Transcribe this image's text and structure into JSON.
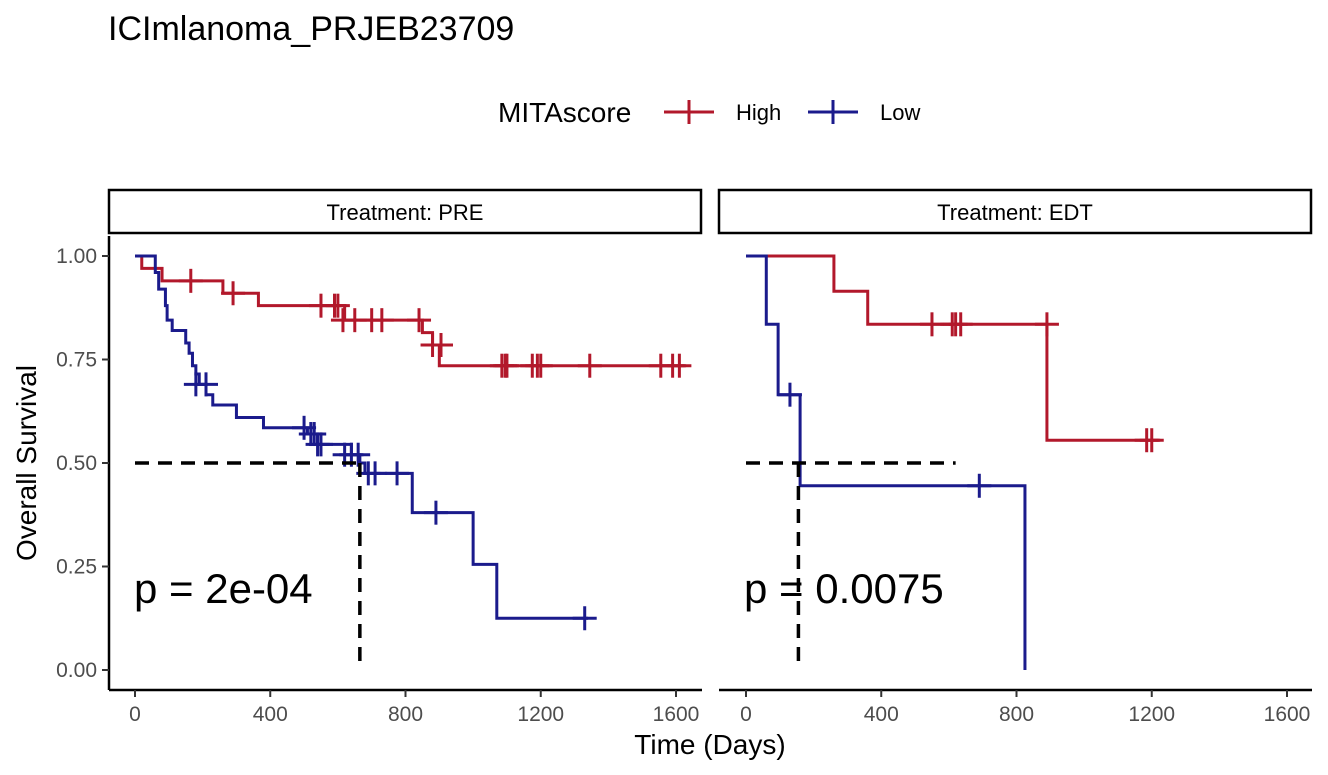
{
  "chart_data": {
    "type": "line",
    "subtype": "kaplan-meier",
    "title": "ICImlanoma_PRJEB23709",
    "xlabel": "Time (Days)",
    "ylabel": "Overall Survival",
    "xlim": [
      0,
      1600
    ],
    "ylim": [
      0,
      1
    ],
    "x_ticks": [
      "0",
      "400",
      "800",
      "1200",
      "1600"
    ],
    "y_ticks": [
      "0.00",
      "0.25",
      "0.50",
      "0.75",
      "1.00"
    ],
    "legend": {
      "title": "MITAscore",
      "position": "top",
      "entries": [
        "High",
        "Low"
      ]
    },
    "colors": {
      "High": "#B2182B",
      "Low": "#1B1B8C",
      "median": "#000000"
    },
    "grid": false,
    "panels": [
      {
        "strip": "Treatment: PRE",
        "p_value": "p = 2e-04",
        "series": [
          {
            "name": "High",
            "steps": [
              [
                0,
                1.0
              ],
              [
                20,
                0.97
              ],
              [
                80,
                0.94
              ],
              [
                260,
                0.91
              ],
              [
                365,
                0.88
              ],
              [
                620,
                0.845
              ],
              [
                850,
                0.815
              ],
              [
                880,
                0.785
              ],
              [
                900,
                0.735
              ],
              [
                1630,
                0.735
              ]
            ],
            "censors": [
              [
                165,
                0.94
              ],
              [
                290,
                0.91
              ],
              [
                550,
                0.88
              ],
              [
                590,
                0.88
              ],
              [
                600,
                0.88
              ],
              [
                615,
                0.845
              ],
              [
                650,
                0.845
              ],
              [
                700,
                0.845
              ],
              [
                730,
                0.845
              ],
              [
                840,
                0.845
              ],
              [
                880,
                0.785
              ],
              [
                905,
                0.785
              ],
              [
                1085,
                0.735
              ],
              [
                1095,
                0.735
              ],
              [
                1100,
                0.735
              ],
              [
                1175,
                0.735
              ],
              [
                1190,
                0.735
              ],
              [
                1200,
                0.735
              ],
              [
                1345,
                0.735
              ],
              [
                1555,
                0.735
              ],
              [
                1590,
                0.735
              ],
              [
                1610,
                0.735
              ]
            ]
          },
          {
            "name": "Low",
            "steps": [
              [
                0,
                1.0
              ],
              [
                60,
                0.96
              ],
              [
                70,
                0.92
              ],
              [
                90,
                0.88
              ],
              [
                95,
                0.845
              ],
              [
                110,
                0.82
              ],
              [
                150,
                0.79
              ],
              [
                160,
                0.765
              ],
              [
                170,
                0.735
              ],
              [
                180,
                0.715
              ],
              [
                190,
                0.69
              ],
              [
                210,
                0.665
              ],
              [
                230,
                0.64
              ],
              [
                300,
                0.61
              ],
              [
                380,
                0.585
              ],
              [
                510,
                0.57
              ],
              [
                540,
                0.545
              ],
              [
                640,
                0.52
              ],
              [
                665,
                0.5
              ],
              [
                680,
                0.475
              ],
              [
                820,
                0.38
              ],
              [
                1000,
                0.255
              ],
              [
                1070,
                0.125
              ],
              [
                1340,
                0.125
              ]
            ],
            "censors": [
              [
                180,
                0.69
              ],
              [
                210,
                0.69
              ],
              [
                500,
                0.585
              ],
              [
                520,
                0.57
              ],
              [
                530,
                0.57
              ],
              [
                540,
                0.545
              ],
              [
                550,
                0.545
              ],
              [
                620,
                0.52
              ],
              [
                640,
                0.52
              ],
              [
                660,
                0.52
              ],
              [
                690,
                0.475
              ],
              [
                710,
                0.475
              ],
              [
                775,
                0.475
              ],
              [
                890,
                0.38
              ],
              [
                1330,
                0.125
              ]
            ]
          }
        ],
        "median_lines": [
          {
            "from": [
              0,
              0.5
            ],
            "to": [
              665,
              0.5
            ],
            "drop": [
              665,
              0.0
            ]
          }
        ]
      },
      {
        "strip": "Treatment: EDT",
        "p_value": "p = 0.0075",
        "series": [
          {
            "name": "High",
            "steps": [
              [
                0,
                1.0
              ],
              [
                260,
                0.915
              ],
              [
                360,
                0.835
              ],
              [
                890,
                0.555
              ],
              [
                1225,
                0.555
              ]
            ],
            "censors": [
              [
                550,
                0.835
              ],
              [
                610,
                0.835
              ],
              [
                620,
                0.835
              ],
              [
                635,
                0.835
              ],
              [
                890,
                0.835
              ],
              [
                1185,
                0.555
              ],
              [
                1200,
                0.555
              ]
            ]
          },
          {
            "name": "Low",
            "steps": [
              [
                0,
                1.0
              ],
              [
                60,
                0.835
              ],
              [
                95,
                0.665
              ],
              [
                160,
                0.445
              ],
              [
                825,
                0.445
              ],
              [
                825,
                0.0
              ]
            ],
            "censors": [
              [
                130,
                0.665
              ],
              [
                690,
                0.445
              ]
            ]
          }
        ],
        "median_lines": [
          {
            "from": [
              0,
              0.5
            ],
            "to": [
              620,
              0.5
            ],
            "drop": [
              155,
              0.0
            ]
          }
        ]
      }
    ]
  }
}
